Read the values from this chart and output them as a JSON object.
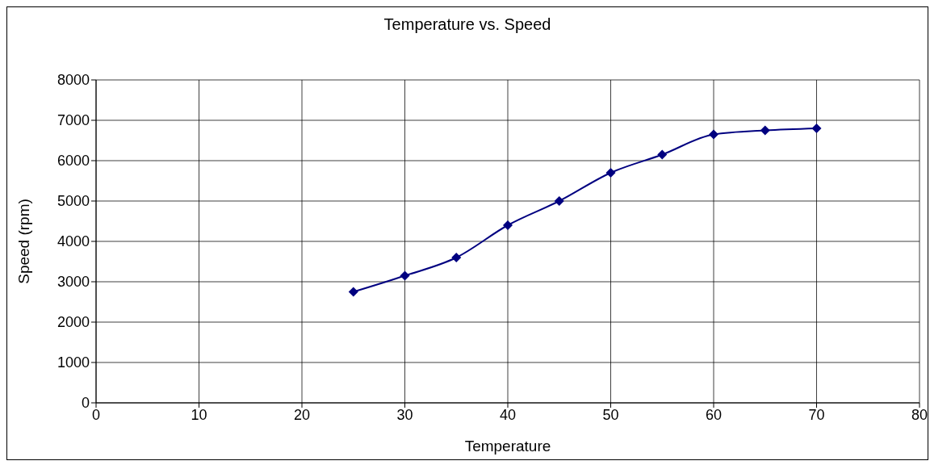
{
  "chart_data": {
    "type": "line",
    "title": "Temperature vs. Speed",
    "xlabel": "Temperature",
    "ylabel": "Speed (rpm)",
    "x": [
      25,
      30,
      35,
      40,
      45,
      50,
      55,
      60,
      65,
      70
    ],
    "series": [
      {
        "color": "#000080",
        "values": [
          2750,
          3150,
          3600,
          4400,
          5000,
          5700,
          6150,
          6650,
          6750,
          6800
        ]
      }
    ],
    "xlim": [
      0,
      80
    ],
    "xticks": [
      0,
      10,
      20,
      30,
      40,
      50,
      60,
      70,
      80
    ],
    "ylim": [
      0,
      8000
    ],
    "yticks": [
      0,
      1000,
      2000,
      3000,
      4000,
      5000,
      6000,
      7000,
      8000
    ],
    "grid": true,
    "marker": "diamond",
    "line_style": "solid",
    "legend": false
  }
}
